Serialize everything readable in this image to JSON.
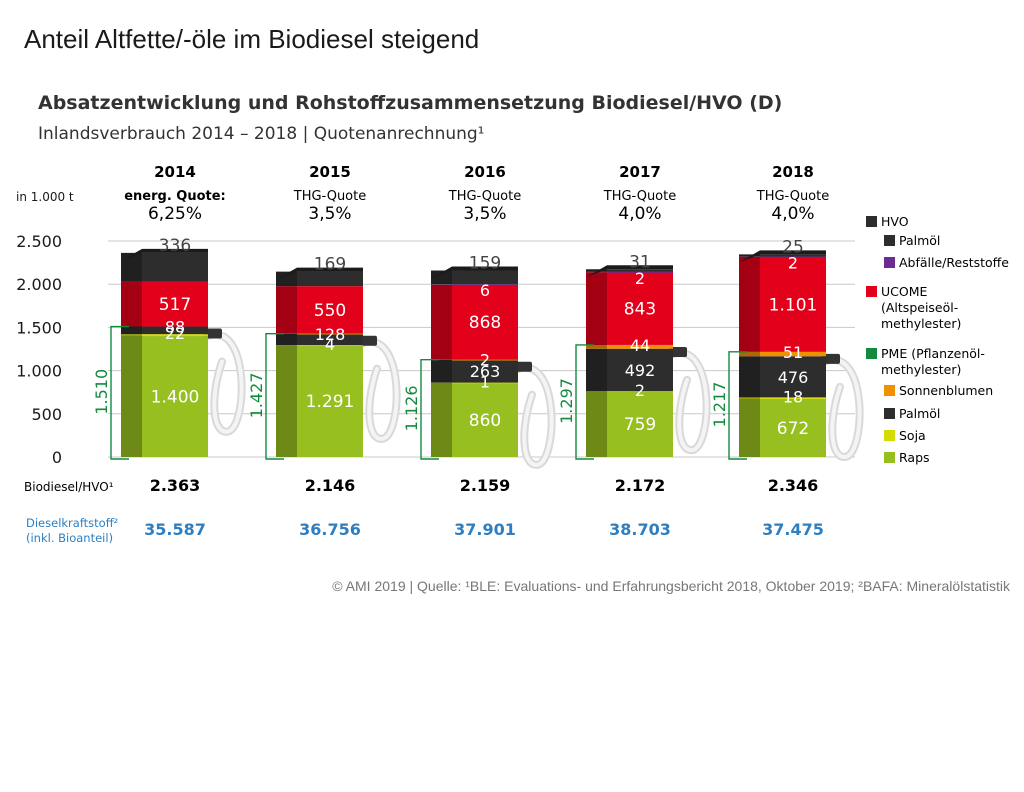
{
  "page_title": "Anteil Altfette/-öle im Biodiesel steigend",
  "source": "© AMI 2019 | Quelle: ¹BLE: Evaluations- und Erfahrungsbericht 2018, Oktober 2019; ²BAFA: Mineralölstatistik",
  "colors": {
    "raps": "#97bf1f",
    "soja": "#d4db00",
    "palm_pme": "#2d2d2d",
    "sonnenblumen": "#f29100",
    "ucome": "#e2001a",
    "hvo_palm": "#2d2d2d",
    "hvo_abfaelle": "#6b2c91",
    "bracket": "#138a3e",
    "diesel_text": "#2d7fc1"
  },
  "chart_data": {
    "type": "bar",
    "stacked": true,
    "title": "Absatzentwicklung und Rohstoffzusammensetzung Biodiesel/HVO (D)",
    "subtitle": "Inlandsverbrauch 2014 – 2018 | Quotenanrechnung¹",
    "unit_label": "in 1.000 t",
    "ylim": [
      0,
      2500
    ],
    "y_ticks": [
      0,
      500,
      1000,
      1500,
      2000,
      2500
    ],
    "y_tick_labels": [
      "0",
      "500",
      "1.000",
      "1.500",
      "2.000",
      "2.500"
    ],
    "grid": true,
    "legend_position": "right",
    "categories": [
      "2014",
      "2015",
      "2016",
      "2017",
      "2018"
    ],
    "quota_types": [
      "energ. Quote:",
      "THG-Quote",
      "THG-Quote",
      "THG-Quote",
      "THG-Quote"
    ],
    "quota_values": [
      "6,25%",
      "3,5%",
      "3,5%",
      "4,0%",
      "4,0%"
    ],
    "series": [
      {
        "key": "raps",
        "name": "Raps",
        "group": "PME",
        "values": [
          1400,
          1291,
          860,
          759,
          672
        ],
        "labels": [
          "1.400",
          "1.291",
          "860",
          "759",
          "672"
        ]
      },
      {
        "key": "soja",
        "name": "Soja",
        "group": "PME",
        "values": [
          22,
          4,
          1,
          2,
          18
        ],
        "labels": [
          "22",
          "4",
          "1",
          "2",
          "18"
        ]
      },
      {
        "key": "palm_pme",
        "name": "Palmöl",
        "group": "PME",
        "values": [
          88,
          128,
          263,
          492,
          476
        ],
        "labels": [
          "88",
          "128",
          "263",
          "492",
          "476"
        ]
      },
      {
        "key": "sonnenblumen",
        "name": "Sonnenblumen",
        "group": "PME",
        "values": [
          0,
          4,
          2,
          44,
          51
        ],
        "labels": [
          "",
          "",
          "2",
          "44",
          "51"
        ]
      },
      {
        "key": "ucome",
        "name": "UCOME",
        "group": "UCOME",
        "values": [
          517,
          550,
          868,
          843,
          1101
        ],
        "labels": [
          "517",
          "550",
          "868",
          "843",
          "1.101"
        ]
      },
      {
        "key": "hvo_abfaelle",
        "name": "Abfälle/Reststoffe",
        "group": "HVO",
        "values": [
          0,
          0,
          6,
          2,
          2
        ],
        "labels": [
          "",
          "",
          "6",
          "2",
          "2"
        ]
      },
      {
        "key": "hvo_palm",
        "name": "Palmöl",
        "group": "HVO",
        "values": [
          336,
          169,
          159,
          31,
          25
        ],
        "labels": [
          "336",
          "169",
          "159",
          "31",
          "25"
        ]
      }
    ],
    "pme_totals": [
      "1.510",
      "1.427",
      "1.126",
      "1.297",
      "1.217"
    ],
    "pme_total_values": [
      1510,
      1427,
      1126,
      1297,
      1217
    ],
    "row_biodiesel": {
      "label": "Biodiesel/HVO¹",
      "values": [
        "2.363",
        "2.146",
        "2.159",
        "2.172",
        "2.346"
      ]
    },
    "row_diesel": {
      "label_line1": "Dieselkraftstoff²",
      "label_line2": "(inkl. Bioanteil)",
      "values": [
        "35.587",
        "36.756",
        "37.901",
        "38.703",
        "37.475"
      ]
    },
    "legend": [
      {
        "text": "HVO",
        "swatch": "hvo_palm",
        "level": 0
      },
      {
        "text": "Palmöl",
        "swatch": "hvo_palm",
        "level": 1
      },
      {
        "text": "Abfälle/Reststoffe",
        "swatch": "hvo_abfaelle",
        "level": 1
      },
      {
        "text": "UCOME",
        "swatch": "ucome",
        "level": 0,
        "extra": [
          "(Altspeiseöl-",
          "methylester)"
        ]
      },
      {
        "text": "PME (Pflanzenöl-",
        "swatch": "bracket",
        "level": 0,
        "extra": [
          "methylester)"
        ]
      },
      {
        "text": "Sonnenblumen",
        "swatch": "sonnenblumen",
        "level": 1
      },
      {
        "text": "Palmöl",
        "swatch": "palm_pme",
        "level": 1
      },
      {
        "text": "Soja",
        "swatch": "soja",
        "level": 1
      },
      {
        "text": "Raps",
        "swatch": "raps",
        "level": 1
      }
    ]
  }
}
